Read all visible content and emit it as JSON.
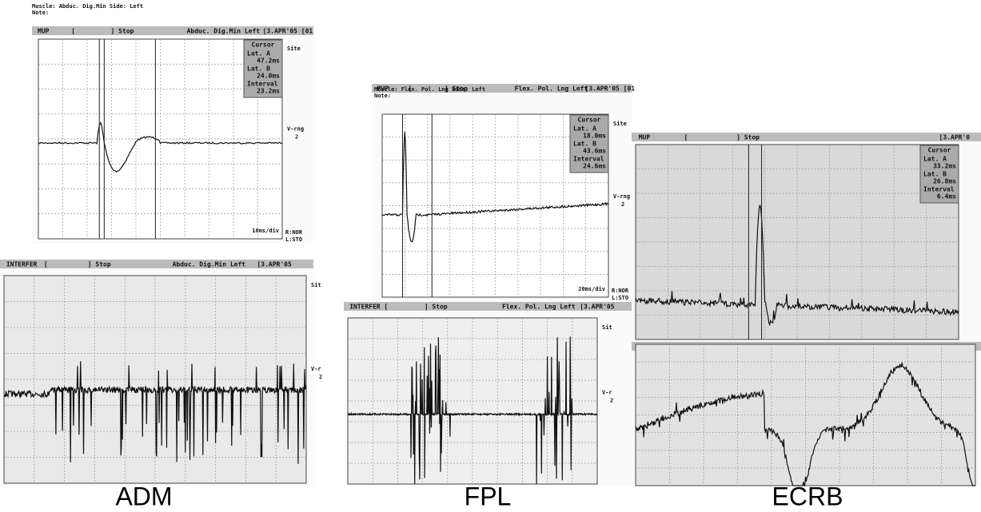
{
  "panels": [
    {
      "label": "ADM",
      "notes": [
        "Muscle: Abduc. Dig.Min  Side: Left",
        "Note:"
      ],
      "top": {
        "header": [
          "MUP",
          "[",
          "] Stop",
          "Abduc. Dig.Min Left",
          "[3.APR'05 [01"
        ],
        "cursor": {
          "title": "Cursor",
          "rows": [
            [
              "Lat. A",
              "47.2ms"
            ],
            [
              "Lat. B",
              "24.0ms"
            ],
            [
              "Interval",
              "23.2ms"
            ]
          ]
        },
        "side": [
          "Site",
          "V-rng",
          "2"
        ],
        "scale": "10ms/div",
        "footer": [
          "R:NOR",
          "L:STO"
        ]
      },
      "bottom": {
        "header": [
          "INTERFER",
          "[",
          "] Stop",
          "Abduc. Dig.Min Left",
          "[3.APR'05"
        ],
        "side": [
          "Sit",
          "V-r",
          "2"
        ]
      }
    },
    {
      "label": "FPL",
      "notes": [
        "Muscle: Flex. Pol. Lng  Side: Left",
        "Note:"
      ],
      "top": {
        "header": [
          "MUP",
          "[",
          "] Stop",
          "Flex. Pol. Lng Left",
          "[3.APR'05 [01"
        ],
        "cursor": {
          "title": "Cursor",
          "rows": [
            [
              "Lat. A",
              "18.0ms"
            ],
            [
              "Lat. B",
              "43.6ms"
            ],
            [
              "Interval",
              "24.6ms"
            ]
          ]
        },
        "side": [
          "Site",
          "V-rng",
          "2"
        ],
        "scale": "20ms/div",
        "footer": [
          "R:NOR",
          "L:STO"
        ]
      },
      "bottom": {
        "header": [
          "INTERFER",
          "[",
          "] Stop",
          "Flex. Pol. Lng Left",
          "[3.APR'05"
        ],
        "side": [
          "Sit",
          "V-r",
          "2"
        ]
      }
    },
    {
      "label": "ECRB",
      "top": {
        "header": [
          "MUP",
          "[",
          "] Stop",
          "[3.APR'0"
        ],
        "cursor": {
          "title": "Cursor",
          "rows": [
            [
              "Lat. A",
              "33.2ms"
            ],
            [
              "Lat. B",
              "26.8ms"
            ],
            [
              "Interval",
              "6.4ms"
            ]
          ]
        }
      },
      "bottom": {
        "header": []
      }
    }
  ]
}
